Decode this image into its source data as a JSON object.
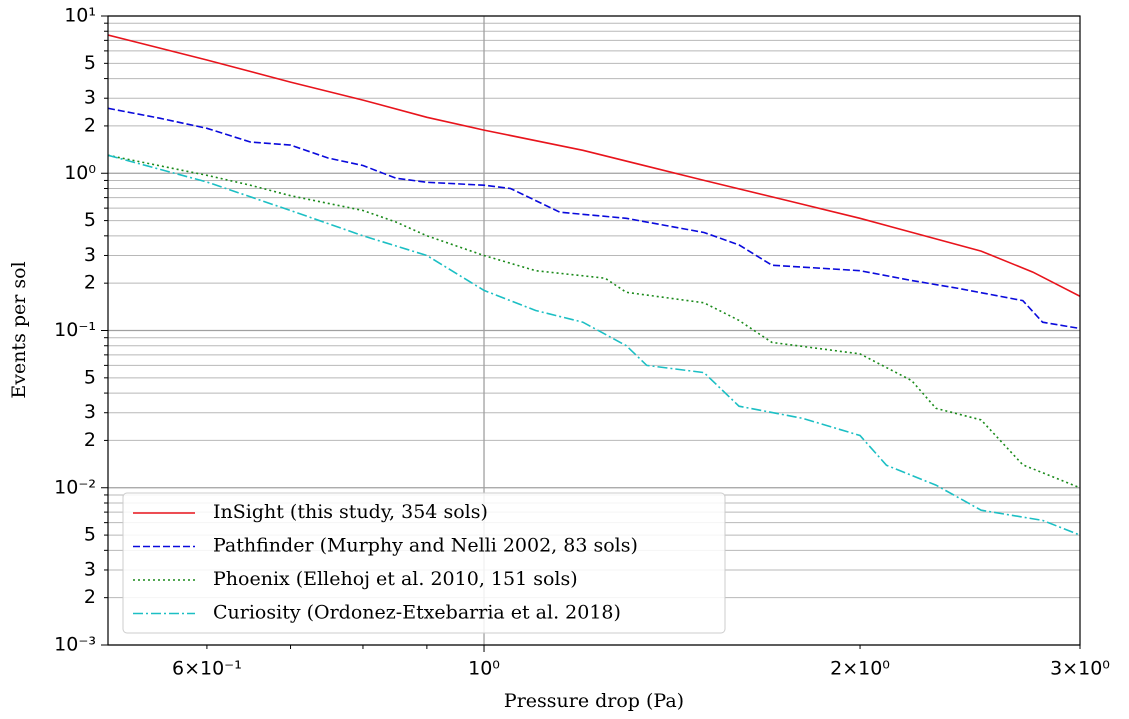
{
  "chart_data": {
    "type": "line",
    "xlabel": "Pressure drop (Pa)",
    "ylabel": "Events per sol",
    "xscale": "log",
    "yscale": "log",
    "xlim": [
      0.5,
      3.0
    ],
    "ylim": [
      0.001,
      10
    ],
    "xticks": [
      {
        "value": 0.6,
        "label": "6×10⁻¹"
      },
      {
        "value": 1,
        "label": "10⁰"
      },
      {
        "value": 2,
        "label": "2×10⁰"
      },
      {
        "value": 3,
        "label": "3×10⁰"
      }
    ],
    "xminorticks": [
      0.7,
      0.8,
      0.9
    ],
    "yticks": [
      {
        "value": 10,
        "label": "10¹"
      },
      5,
      3,
      2,
      {
        "value": 1,
        "label": "10⁰"
      },
      {
        "value": 0.5,
        "label": "5"
      },
      {
        "value": 0.3,
        "label": "3"
      },
      {
        "value": 0.2,
        "label": "2"
      },
      {
        "value": 0.1,
        "label": "10⁻¹"
      },
      {
        "value": 0.05,
        "label": "5"
      },
      {
        "value": 0.03,
        "label": "3"
      },
      {
        "value": 0.02,
        "label": "2"
      },
      {
        "value": 0.01,
        "label": "10⁻²"
      },
      {
        "value": 0.005,
        "label": "5"
      },
      {
        "value": 0.003,
        "label": "3"
      },
      {
        "value": 0.002,
        "label": "2"
      },
      {
        "value": 0.001,
        "label": "10⁻³"
      }
    ],
    "yminorticks": [
      9,
      8,
      7,
      6,
      4,
      0.9,
      0.8,
      0.7,
      0.6,
      0.4,
      0.09,
      0.08,
      0.07,
      0.06,
      0.04,
      0.009,
      0.008,
      0.007,
      0.006,
      0.004
    ],
    "grid": {
      "x": "major",
      "y": "all"
    },
    "legend": "lower left",
    "series": [
      {
        "name": "InSight (this study, 354 sols)",
        "color": "#e8141c",
        "linestyle": "solid",
        "x": [
          0.5,
          0.6,
          0.7,
          0.8,
          0.9,
          1.0,
          1.2,
          1.5,
          1.75,
          2.0,
          2.5,
          2.75,
          3.0
        ],
        "values": [
          7.57,
          5.25,
          3.8,
          2.92,
          2.27,
          1.88,
          1.4,
          0.9,
          0.67,
          0.517,
          0.32,
          0.235,
          0.165
        ]
      },
      {
        "name": "Pathfinder (Murphy and Nelli 2002, 83 sols)",
        "color": "#0a0adc",
        "linestyle": "dashed",
        "x": [
          0.5,
          0.55,
          0.6,
          0.65,
          0.7,
          0.75,
          0.8,
          0.85,
          0.9,
          1.0,
          1.05,
          1.1,
          1.15,
          1.3,
          1.5,
          1.6,
          1.7,
          2.0,
          2.2,
          2.4,
          2.7,
          2.8,
          3.0
        ],
        "values": [
          2.59,
          2.24,
          1.93,
          1.58,
          1.51,
          1.25,
          1.12,
          0.93,
          0.876,
          0.84,
          0.8,
          0.67,
          0.565,
          0.517,
          0.42,
          0.35,
          0.26,
          0.24,
          0.208,
          0.185,
          0.155,
          0.113,
          0.103
        ]
      },
      {
        "name": "Phoenix (Ellehoj et al. 2010, 151 sols)",
        "color": "#1a8a1a",
        "linestyle": "dotted",
        "x": [
          0.5,
          0.6,
          0.65,
          0.7,
          0.8,
          0.85,
          0.9,
          1.0,
          1.1,
          1.25,
          1.3,
          1.5,
          1.6,
          1.7,
          2.0,
          2.2,
          2.3,
          2.5,
          2.7,
          3.0
        ],
        "values": [
          1.3,
          0.97,
          0.84,
          0.72,
          0.58,
          0.49,
          0.4,
          0.3,
          0.24,
          0.215,
          0.175,
          0.15,
          0.116,
          0.084,
          0.071,
          0.048,
          0.032,
          0.027,
          0.014,
          0.01
        ]
      },
      {
        "name": "Curiosity (Ordonez-Etxebarria et al. 2018)",
        "color": "#1cbfc4",
        "linestyle": "dashdot",
        "x": [
          0.5,
          0.6,
          0.7,
          0.8,
          0.9,
          1.0,
          1.1,
          1.2,
          1.3,
          1.35,
          1.5,
          1.6,
          1.8,
          2.0,
          2.1,
          2.3,
          2.5,
          2.8,
          3.0
        ],
        "values": [
          1.3,
          0.88,
          0.58,
          0.4,
          0.3,
          0.18,
          0.134,
          0.113,
          0.08,
          0.06,
          0.054,
          0.033,
          0.0276,
          0.0215,
          0.0139,
          0.0104,
          0.0072,
          0.0062,
          0.005
        ]
      }
    ]
  }
}
